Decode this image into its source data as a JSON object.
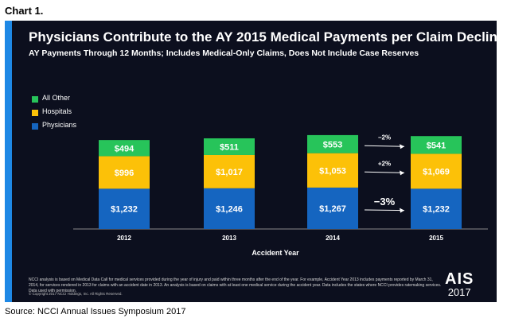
{
  "figure_label": "Chart 1.",
  "slide": {
    "title": "Physicians Contribute to the AY 2015 Medical Payments per Claim Decline",
    "subtitle": "AY Payments Through 12 Months; Includes Medical-Only Claims, Does Not Include Case Reserves",
    "footnote": "NCCI analysis is based on Medical Data Call for medical services provided during the year of injury and paid within three months after the end of the year. For example, Accident Year 2013 includes payments reported by March 31, 2014, for services rendered in 2013 for claims with an accident date in 2013. An analysis is based on claims with at least one medical service during the accident year. Data includes the states where NCCI provides ratemaking services. Data used with permission.",
    "copyright": "© Copyright 2017 NCCI Holdings, Inc. All Rights Reserved.",
    "logo_text": "AIS",
    "logo_year": "2017"
  },
  "source": "Source: NCCI Annual Issues Symposium 2017",
  "colors": {
    "physicians": "#1565c0",
    "hospitals": "#fcc108",
    "all_other": "#27c45a",
    "background": "#0c0f1e",
    "accent": "#1e88e5"
  },
  "chart_data": {
    "type": "bar",
    "stacked": true,
    "categories": [
      "2012",
      "2013",
      "2014",
      "2015"
    ],
    "xlabel": "Accident Year",
    "ylabel": "",
    "series": [
      {
        "name": "Physicians",
        "values": [
          1232,
          1246,
          1267,
          1232
        ],
        "labels": [
          "$1,232",
          "$1,246",
          "$1,267",
          "$1,232"
        ]
      },
      {
        "name": "Hospitals",
        "values": [
          996,
          1017,
          1053,
          1069
        ],
        "labels": [
          "$996",
          "$1,017",
          "$1,053",
          "$1,069"
        ]
      },
      {
        "name": "All Other",
        "values": [
          494,
          511,
          553,
          541
        ],
        "labels": [
          "$494",
          "$511",
          "$553",
          "$541"
        ]
      }
    ],
    "legend_order": [
      "All Other",
      "Hospitals",
      "Physicians"
    ],
    "legend_position": "top-left",
    "annotations": [
      {
        "text": "−2%",
        "series": "All Other"
      },
      {
        "text": "+2%",
        "series": "Hospitals"
      },
      {
        "text": "−3%",
        "series": "Physicians"
      }
    ],
    "grid": false
  }
}
